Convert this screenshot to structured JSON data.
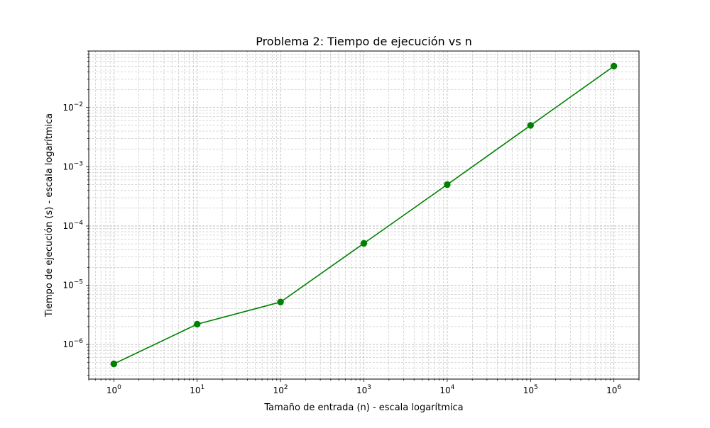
{
  "chart_data": {
    "type": "line",
    "title": "Problema 2: Tiempo de ejecución vs n",
    "xlabel": "Tamaño de entrada (n) - escala logarítmica",
    "ylabel": "Tiempo de ejecución (s) - escala logarítmica",
    "xscale": "log",
    "yscale": "log",
    "xlim": [
      0.5,
      2000000
    ],
    "ylim": [
      2.6e-07,
      0.09
    ],
    "grid": true,
    "color": "#008000",
    "x": [
      1,
      10,
      100,
      1000,
      10000,
      100000,
      1000000
    ],
    "y": [
      4.7e-07,
      2.2e-06,
      5.2e-06,
      5.1e-05,
      0.0005,
      0.005,
      0.05
    ],
    "x_ticks": [
      {
        "value": 1,
        "base": "10",
        "exp": "0"
      },
      {
        "value": 10,
        "base": "10",
        "exp": "1"
      },
      {
        "value": 100,
        "base": "10",
        "exp": "2"
      },
      {
        "value": 1000,
        "base": "10",
        "exp": "3"
      },
      {
        "value": 10000,
        "base": "10",
        "exp": "4"
      },
      {
        "value": 100000,
        "base": "10",
        "exp": "5"
      },
      {
        "value": 1000000,
        "base": "10",
        "exp": "6"
      }
    ],
    "y_ticks": [
      {
        "value": 1e-06,
        "base": "10",
        "exp": "−6"
      },
      {
        "value": 1e-05,
        "base": "10",
        "exp": "−5"
      },
      {
        "value": 0.0001,
        "base": "10",
        "exp": "−4"
      },
      {
        "value": 0.001,
        "base": "10",
        "exp": "−3"
      },
      {
        "value": 0.01,
        "base": "10",
        "exp": "−2"
      }
    ]
  }
}
